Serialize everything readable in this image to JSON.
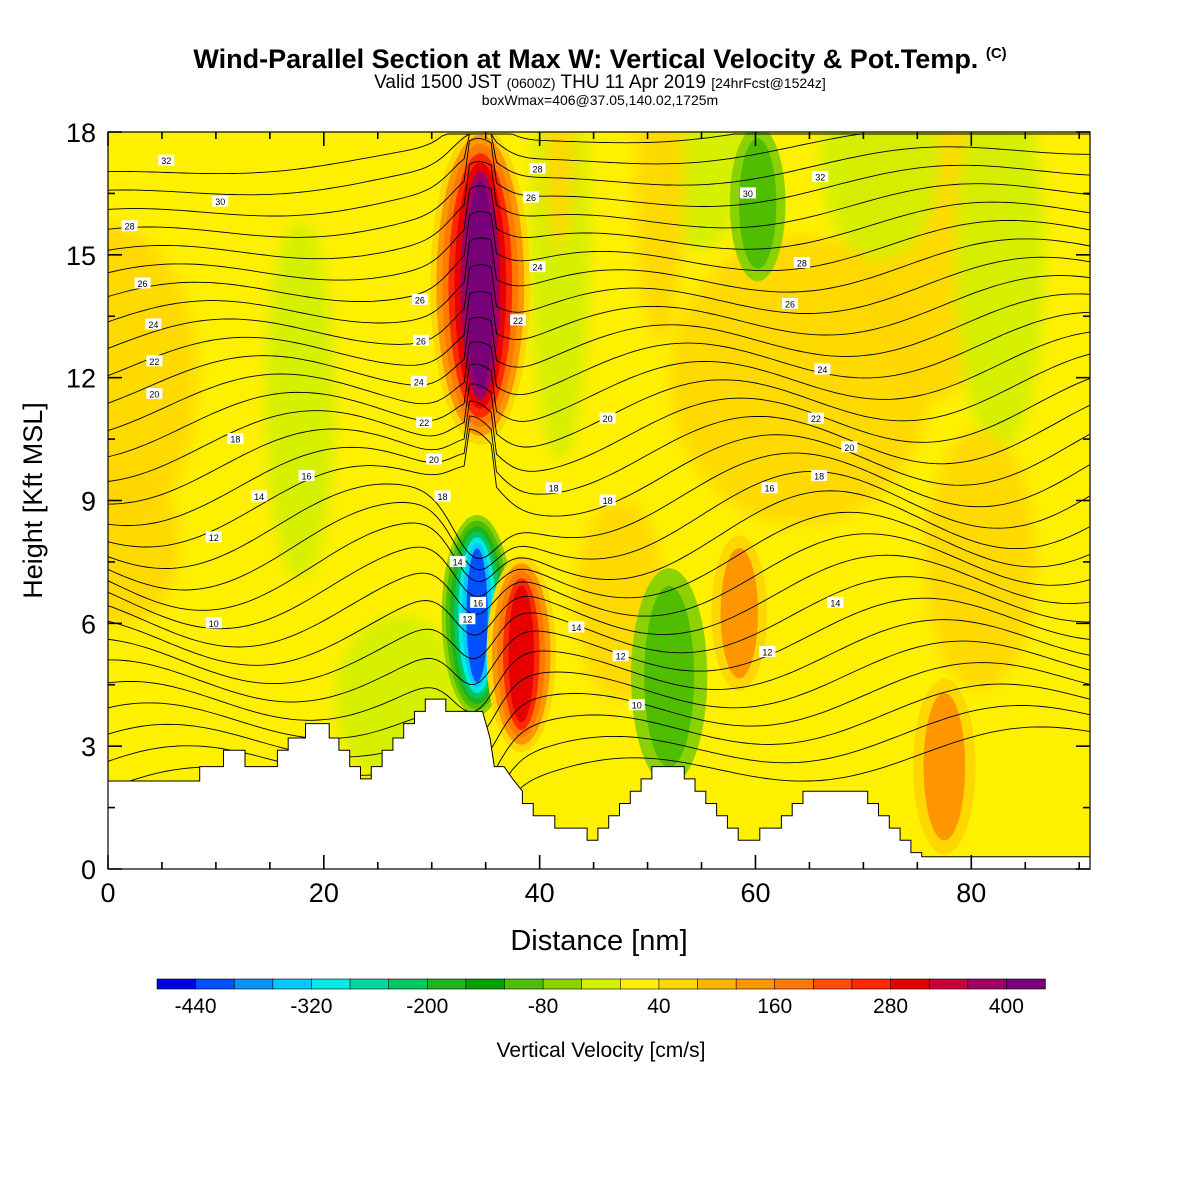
{
  "title": {
    "main": "Wind-Parallel Section at Max W: Vertical Velocity & Pot.Temp.",
    "main_mark": "(C)",
    "valid_a": "Valid 1500 JST",
    "valid_b": "(0600Z)",
    "valid_c": "THU 11 Apr 2019",
    "valid_d": "[24hrFcst@1524z]",
    "box": "boxWmax=406@37.05,140.02,1725m"
  },
  "chart_data": {
    "type": "heatmap",
    "xlabel": "Distance [nm]",
    "ylabel": "Height [Kft MSL]",
    "xlim": [
      0,
      91
    ],
    "ylim": [
      0,
      18
    ],
    "xticks": [
      0,
      20,
      40,
      60,
      80
    ],
    "yticks": [
      0,
      3,
      6,
      9,
      12,
      15,
      18
    ],
    "grid": false,
    "colorbar": {
      "label": "Vertical Velocity [cm/s]",
      "min": -480,
      "max": 440,
      "step": 40,
      "tick_labels": [
        -440,
        -320,
        -200,
        -80,
        40,
        160,
        280,
        400
      ],
      "colors": [
        "#0000e6",
        "#0050ff",
        "#0096ff",
        "#00c8ff",
        "#00ebe6",
        "#00d7a0",
        "#00c864",
        "#1eb41e",
        "#00a000",
        "#50be00",
        "#8cd200",
        "#d2f000",
        "#fff000",
        "#ffd700",
        "#ffb400",
        "#ff9600",
        "#ff7800",
        "#ff4b00",
        "#ff2800",
        "#e60000",
        "#c8003c",
        "#a00064",
        "#780078"
      ]
    },
    "terrain_kft": [
      [
        0,
        2.15
      ],
      [
        8.5,
        2.15
      ],
      [
        8.5,
        2.5
      ],
      [
        10.7,
        2.5
      ],
      [
        10.7,
        2.9
      ],
      [
        12.7,
        2.9
      ],
      [
        12.7,
        2.5
      ],
      [
        15.7,
        2.5
      ],
      [
        15.7,
        2.9
      ],
      [
        16.7,
        2.9
      ],
      [
        16.7,
        3.2
      ],
      [
        18.3,
        3.2
      ],
      [
        18.3,
        3.55
      ],
      [
        20.5,
        3.55
      ],
      [
        20.5,
        3.2
      ],
      [
        21.4,
        3.2
      ],
      [
        21.4,
        2.9
      ],
      [
        22.4,
        2.9
      ],
      [
        22.4,
        2.5
      ],
      [
        23.4,
        2.5
      ],
      [
        23.4,
        2.2
      ],
      [
        24.4,
        2.2
      ],
      [
        24.4,
        2.5
      ],
      [
        25.4,
        2.5
      ],
      [
        25.4,
        2.9
      ],
      [
        26.4,
        2.9
      ],
      [
        26.4,
        3.2
      ],
      [
        27.4,
        3.2
      ],
      [
        27.4,
        3.55
      ],
      [
        28.4,
        3.55
      ],
      [
        28.4,
        3.85
      ],
      [
        29.4,
        3.85
      ],
      [
        29.4,
        4.15
      ],
      [
        31.3,
        4.15
      ],
      [
        31.3,
        3.85
      ],
      [
        34.7,
        3.85
      ],
      [
        35.4,
        3.2
      ],
      [
        35.8,
        2.5
      ],
      [
        36.7,
        2.5
      ],
      [
        37.5,
        2.2
      ],
      [
        38.4,
        1.9
      ],
      [
        38.4,
        1.6
      ],
      [
        39.4,
        1.6
      ],
      [
        39.4,
        1.3
      ],
      [
        41.4,
        1.3
      ],
      [
        41.4,
        1.0
      ],
      [
        44.4,
        1.0
      ],
      [
        44.4,
        0.7
      ],
      [
        45.4,
        0.7
      ],
      [
        45.4,
        1.0
      ],
      [
        46.4,
        1.0
      ],
      [
        46.4,
        1.3
      ],
      [
        47.4,
        1.3
      ],
      [
        47.4,
        1.6
      ],
      [
        48.4,
        1.6
      ],
      [
        48.4,
        1.9
      ],
      [
        49.4,
        1.9
      ],
      [
        49.4,
        2.2
      ],
      [
        50.4,
        2.2
      ],
      [
        50.4,
        2.5
      ],
      [
        53.4,
        2.5
      ],
      [
        53.4,
        2.2
      ],
      [
        54.4,
        2.2
      ],
      [
        54.4,
        1.9
      ],
      [
        55.4,
        1.9
      ],
      [
        55.4,
        1.6
      ],
      [
        56.4,
        1.6
      ],
      [
        56.4,
        1.3
      ],
      [
        57.4,
        1.3
      ],
      [
        57.4,
        1.0
      ],
      [
        58.4,
        1.0
      ],
      [
        58.4,
        0.7
      ],
      [
        60.4,
        0.7
      ],
      [
        60.4,
        1.0
      ],
      [
        62.4,
        1.0
      ],
      [
        62.4,
        1.3
      ],
      [
        63.4,
        1.3
      ],
      [
        63.4,
        1.6
      ],
      [
        64.4,
        1.6
      ],
      [
        64.4,
        1.9
      ],
      [
        70.4,
        1.9
      ],
      [
        70.4,
        1.6
      ],
      [
        71.4,
        1.6
      ],
      [
        71.4,
        1.3
      ],
      [
        72.4,
        1.3
      ],
      [
        72.4,
        1.0
      ],
      [
        73.4,
        1.0
      ],
      [
        73.4,
        0.7
      ],
      [
        74.4,
        0.7
      ],
      [
        74.4,
        0.4
      ],
      [
        75.4,
        0.4
      ],
      [
        75.4,
        0.3
      ],
      [
        91,
        0.3
      ]
    ],
    "w_features": [
      {
        "type": "updraft",
        "value": 406,
        "x": 34.5,
        "y_range": [
          10.5,
          18
        ]
      },
      {
        "type": "downdraft",
        "value": -420,
        "x": 34.2,
        "y_range": [
          3.9,
          8.5
        ]
      },
      {
        "type": "updraft",
        "value": 300,
        "x": 38.3,
        "y_range": [
          3.0,
          7.5
        ]
      },
      {
        "type": "downdraft",
        "value": -150,
        "x": 60.2,
        "y_range": [
          14.5,
          18
        ]
      },
      {
        "type": "downdraft",
        "value": -120,
        "x": 52.0,
        "y_range": [
          2.2,
          7.2
        ]
      },
      {
        "type": "updraft",
        "value": 150,
        "x": 58.5,
        "y_range": [
          4.5,
          8.0
        ]
      },
      {
        "type": "updraft",
        "value": 170,
        "x": 77.5,
        "y_range": [
          0.5,
          4.5
        ]
      }
    ],
    "theta_contour_labels": [
      {
        "text": "32",
        "x": 5.4,
        "y": 17.3
      },
      {
        "text": "30",
        "x": 10.4,
        "y": 16.3
      },
      {
        "text": "28",
        "x": 2.0,
        "y": 15.7
      },
      {
        "text": "26",
        "x": 3.2,
        "y": 14.3
      },
      {
        "text": "24",
        "x": 4.2,
        "y": 13.3
      },
      {
        "text": "22",
        "x": 4.3,
        "y": 12.4
      },
      {
        "text": "20",
        "x": 4.3,
        "y": 11.6
      },
      {
        "text": "18",
        "x": 11.8,
        "y": 10.5
      },
      {
        "text": "16",
        "x": 18.4,
        "y": 9.6
      },
      {
        "text": "14",
        "x": 14.0,
        "y": 9.1
      },
      {
        "text": "12",
        "x": 9.8,
        "y": 8.1
      },
      {
        "text": "10",
        "x": 9.8,
        "y": 6.0
      },
      {
        "text": "26",
        "x": 28.9,
        "y": 13.9
      },
      {
        "text": "26",
        "x": 29.0,
        "y": 12.9
      },
      {
        "text": "24",
        "x": 28.8,
        "y": 11.9
      },
      {
        "text": "22",
        "x": 29.3,
        "y": 10.9
      },
      {
        "text": "20",
        "x": 30.2,
        "y": 10.0
      },
      {
        "text": "18",
        "x": 31.0,
        "y": 9.1
      },
      {
        "text": "14",
        "x": 32.4,
        "y": 7.5
      },
      {
        "text": "16",
        "x": 34.3,
        "y": 6.5
      },
      {
        "text": "12",
        "x": 33.3,
        "y": 6.1
      },
      {
        "text": "28",
        "x": 39.8,
        "y": 17.1
      },
      {
        "text": "26",
        "x": 39.2,
        "y": 16.4
      },
      {
        "text": "24",
        "x": 39.8,
        "y": 14.7
      },
      {
        "text": "22",
        "x": 38.0,
        "y": 13.4
      },
      {
        "text": "20",
        "x": 46.3,
        "y": 11.0
      },
      {
        "text": "18",
        "x": 41.3,
        "y": 9.3
      },
      {
        "text": "18",
        "x": 46.3,
        "y": 9.0
      },
      {
        "text": "14",
        "x": 43.4,
        "y": 5.9
      },
      {
        "text": "12",
        "x": 47.5,
        "y": 5.2
      },
      {
        "text": "10",
        "x": 49.0,
        "y": 4.0
      },
      {
        "text": "30",
        "x": 59.3,
        "y": 16.5
      },
      {
        "text": "32",
        "x": 66.0,
        "y": 16.9
      },
      {
        "text": "28",
        "x": 64.3,
        "y": 14.8
      },
      {
        "text": "26",
        "x": 63.2,
        "y": 13.8
      },
      {
        "text": "24",
        "x": 66.2,
        "y": 12.2
      },
      {
        "text": "22",
        "x": 65.6,
        "y": 11.0
      },
      {
        "text": "20",
        "x": 68.7,
        "y": 10.3
      },
      {
        "text": "18",
        "x": 65.9,
        "y": 9.6
      },
      {
        "text": "16",
        "x": 61.3,
        "y": 9.3
      },
      {
        "text": "14",
        "x": 67.4,
        "y": 6.5
      },
      {
        "text": "12",
        "x": 61.1,
        "y": 5.3
      }
    ]
  }
}
